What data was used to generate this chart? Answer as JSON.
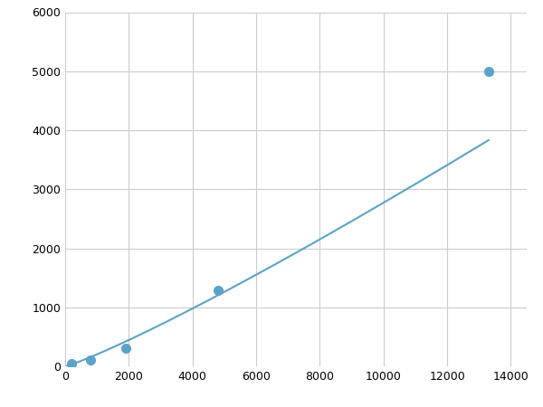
{
  "x": [
    200,
    800,
    1900,
    4800,
    13300
  ],
  "y": [
    50,
    100,
    310,
    1280,
    5000
  ],
  "line_color": "#5ba3c9",
  "marker_color": "#5ba3c9",
  "marker_size": 7,
  "xlim": [
    0,
    14500
  ],
  "ylim": [
    0,
    6000
  ],
  "xticks": [
    0,
    2000,
    4000,
    6000,
    8000,
    10000,
    12000,
    14000
  ],
  "yticks": [
    0,
    1000,
    2000,
    3000,
    4000,
    5000,
    6000
  ],
  "grid_color": "#cccccc",
  "background_color": "#ffffff",
  "linewidth": 1.5,
  "figsize": [
    6.0,
    4.5
  ],
  "dpi": 100
}
